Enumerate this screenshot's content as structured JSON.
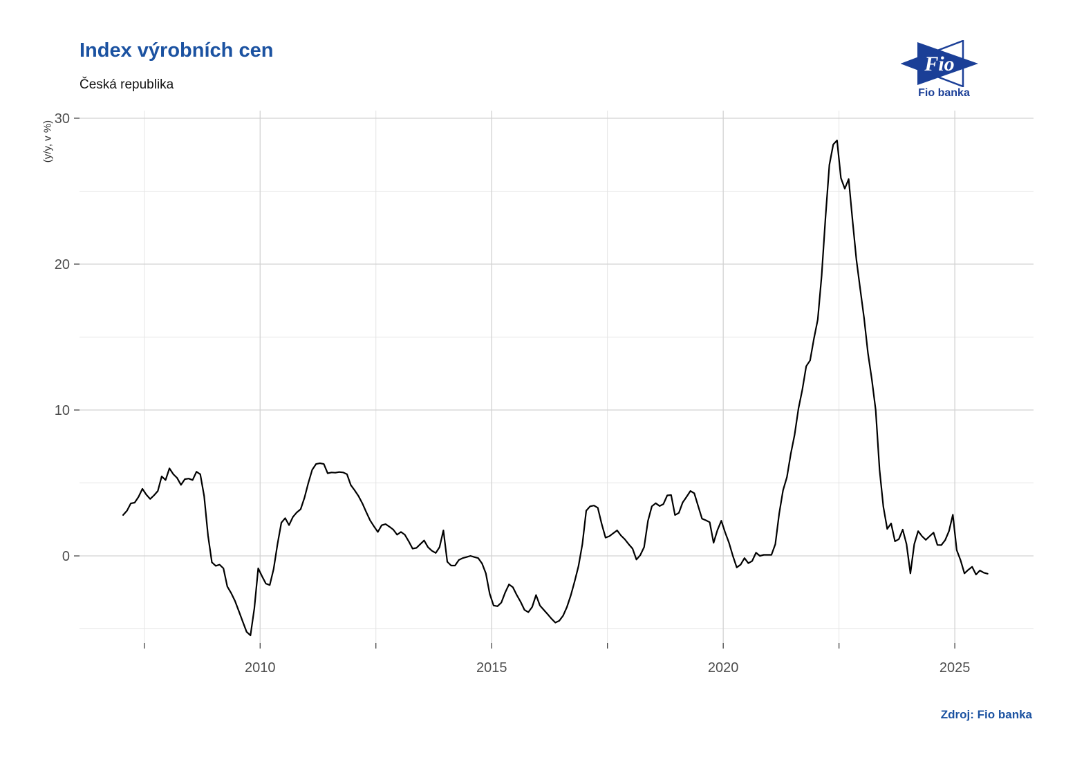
{
  "header": {
    "title": "Index výrobních cen",
    "subtitle": "Česká republika"
  },
  "logo": {
    "text": "Fio",
    "caption": "Fio banka"
  },
  "source": {
    "label": "Zdroj: Fio banka"
  },
  "colors": {
    "accent_navy": "#1b52a1",
    "logo_navy": "#1b3f97",
    "line": "#000000",
    "grid_major": "#d2d2d2",
    "grid_minor": "#e4e4e4",
    "tick_mark": "#333333",
    "tick_label": "#4d4d4d",
    "background": "#ffffff"
  },
  "chart_data": {
    "type": "line",
    "title": "Index výrobních cen",
    "subtitle": "Česká republika",
    "xlabel": "",
    "ylabel": "(y/y, v %)",
    "legend": "none",
    "grid": true,
    "frequency": "monthly",
    "x_start_year": 2007,
    "x_domain": [
      2006.1,
      2026.7
    ],
    "y_domain": [
      -5.97,
      30.52
    ],
    "x_ticks": {
      "major": [
        2010,
        2015,
        2020,
        2025
      ],
      "labels": [
        "2010",
        "2015",
        "2020",
        "2025"
      ],
      "minor": [
        2007.5,
        2012.5,
        2017.5,
        2022.5
      ]
    },
    "y_ticks": {
      "major": [
        0,
        10,
        20,
        30
      ],
      "labels": [
        "0",
        "10",
        "20",
        "30"
      ],
      "minor": [
        -5,
        5,
        15,
        25
      ]
    },
    "values": [
      2.8,
      3.1,
      3.6,
      3.65,
      4.05,
      4.6,
      4.2,
      3.9,
      4.15,
      4.45,
      5.45,
      5.2,
      6.0,
      5.6,
      5.34,
      4.87,
      5.26,
      5.3,
      5.2,
      5.77,
      5.6,
      4.1,
      1.4,
      -0.44,
      -0.68,
      -0.6,
      -0.85,
      -2.1,
      -2.55,
      -3.1,
      -3.8,
      -4.5,
      -5.2,
      -5.45,
      -3.6,
      -0.85,
      -1.4,
      -1.9,
      -2.0,
      -0.9,
      0.8,
      2.28,
      2.59,
      2.11,
      2.67,
      2.98,
      3.2,
      4.0,
      5.0,
      5.9,
      6.3,
      6.35,
      6.3,
      5.66,
      5.72,
      5.7,
      5.75,
      5.72,
      5.6,
      4.85,
      4.5,
      4.1,
      3.6,
      3.0,
      2.43,
      2.03,
      1.64,
      2.1,
      2.18,
      2.0,
      1.8,
      1.45,
      1.64,
      1.45,
      1.0,
      0.5,
      0.55,
      0.8,
      1.06,
      0.6,
      0.35,
      0.2,
      0.6,
      1.75,
      -0.4,
      -0.66,
      -0.66,
      -0.28,
      -0.15,
      -0.08,
      0.0,
      -0.08,
      -0.15,
      -0.52,
      -1.2,
      -2.6,
      -3.4,
      -3.45,
      -3.2,
      -2.5,
      -1.95,
      -2.15,
      -2.68,
      -3.15,
      -3.7,
      -3.86,
      -3.5,
      -2.68,
      -3.4,
      -3.7,
      -4.0,
      -4.3,
      -4.57,
      -4.45,
      -4.1,
      -3.5,
      -2.7,
      -1.75,
      -0.7,
      0.8,
      3.1,
      3.4,
      3.45,
      3.3,
      2.2,
      1.25,
      1.35,
      1.55,
      1.75,
      1.4,
      1.14,
      0.8,
      0.5,
      -0.25,
      0.05,
      0.6,
      2.4,
      3.4,
      3.61,
      3.42,
      3.55,
      4.15,
      4.17,
      2.8,
      2.95,
      3.66,
      4.05,
      4.45,
      4.29,
      3.42,
      2.55,
      2.44,
      2.31,
      0.9,
      1.77,
      2.41,
      1.6,
      0.9,
      0.0,
      -0.79,
      -0.6,
      -0.15,
      -0.5,
      -0.35,
      0.22,
      0.0,
      0.07,
      0.07,
      0.07,
      0.8,
      2.9,
      4.5,
      5.4,
      7.0,
      8.3,
      10.1,
      11.4,
      13.0,
      13.4,
      14.9,
      16.2,
      19.2,
      23.2,
      26.8,
      28.2,
      28.48,
      25.9,
      25.17,
      25.83,
      23.0,
      20.3,
      18.3,
      16.3,
      13.9,
      12.1,
      10.0,
      5.9,
      3.36,
      1.85,
      2.23,
      1.0,
      1.15,
      1.8,
      0.8,
      -1.2,
      0.8,
      1.7,
      1.35,
      1.1,
      1.35,
      1.6,
      0.75,
      0.74,
      1.08,
      1.7,
      2.82,
      0.4,
      -0.3,
      -1.2,
      -0.95,
      -0.75,
      -1.28,
      -1.0,
      -1.15,
      -1.22
    ]
  }
}
